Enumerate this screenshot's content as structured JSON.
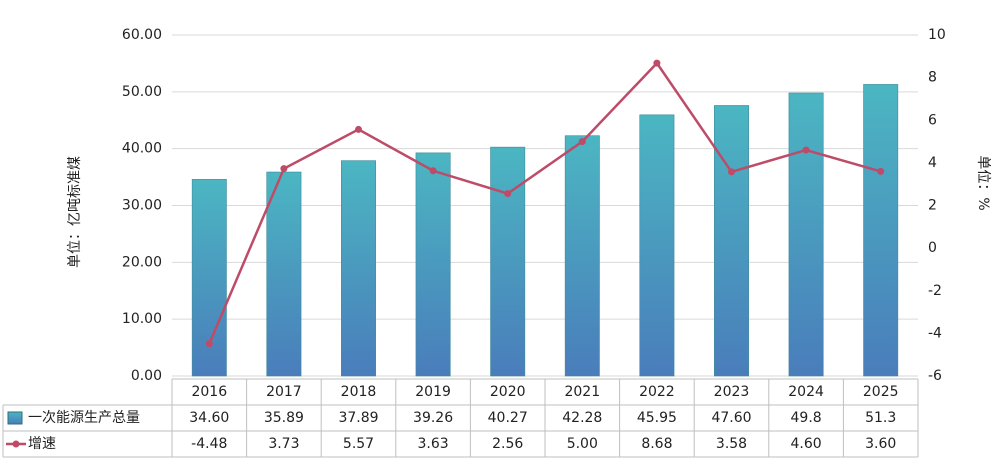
{
  "chart_data": {
    "type": "bar-line",
    "categories": [
      "2016",
      "2017",
      "2018",
      "2019",
      "2020",
      "2021",
      "2022",
      "2023",
      "2024",
      "2025"
    ],
    "series": [
      {
        "name": "一次能源生产总量",
        "type": "bar",
        "color": "#4bacc6",
        "values": [
          34.6,
          35.89,
          37.89,
          39.26,
          40.27,
          42.28,
          45.95,
          47.6,
          49.8,
          51.3
        ],
        "value_labels": [
          "34.60",
          "35.89",
          "37.89",
          "39.26",
          "40.27",
          "42.28",
          "45.95",
          "47.60",
          "49.8",
          "51.3"
        ]
      },
      {
        "name": "增速",
        "type": "line",
        "axis": "y2",
        "color": "#be4b68",
        "values": [
          -4.48,
          3.73,
          5.57,
          3.63,
          2.56,
          5,
          8.68,
          3.58,
          4.6,
          3.6
        ],
        "value_labels": [
          "-4.48",
          "3.73",
          "5.57",
          "3.63",
          "2.56",
          "5.00",
          "8.68",
          "3.58",
          "4.60",
          "3.60"
        ]
      }
    ],
    "y_label": "单位：亿吨标准煤",
    "y2_label": "单位：%",
    "ylim": [
      0,
      60
    ],
    "yticks": [
      {
        "value": 0,
        "label": "0.00"
      },
      {
        "value": 10,
        "label": "10.00"
      },
      {
        "value": 20,
        "label": "20.00"
      },
      {
        "value": 30,
        "label": "30.00"
      },
      {
        "value": 40,
        "label": "40.00"
      },
      {
        "value": 50,
        "label": "50.00"
      },
      {
        "value": 60,
        "label": "60.00"
      }
    ],
    "y2lim": [
      -6,
      10
    ],
    "y2ticks": [
      -6,
      -4,
      -2,
      0,
      2,
      4,
      6,
      8,
      10
    ],
    "grid": true
  }
}
